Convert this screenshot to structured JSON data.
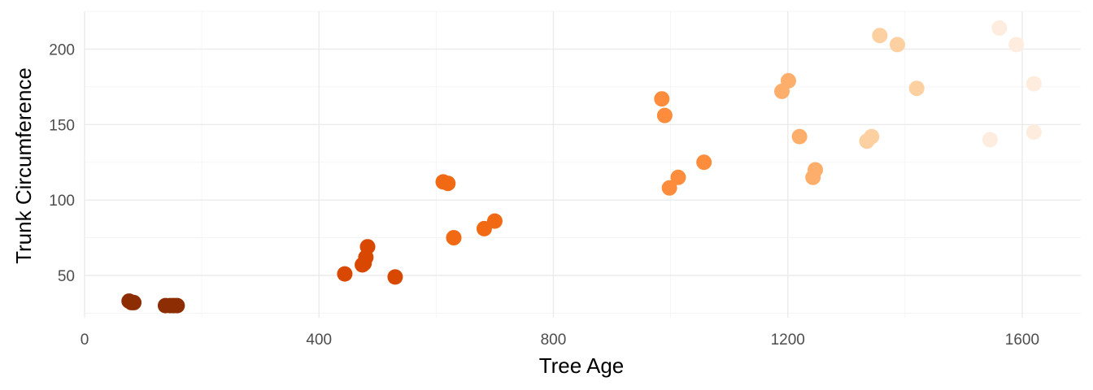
{
  "chart_data": {
    "type": "scatter",
    "title": "",
    "xlabel": "Tree Age",
    "ylabel": "Trunk Circumference",
    "xlim": [
      0,
      1700
    ],
    "ylim": [
      22,
      225
    ],
    "x_ticks": [
      0,
      400,
      800,
      1200,
      1600
    ],
    "x_tick_labels": [
      "0",
      "400",
      "800",
      "1200",
      "1600"
    ],
    "y_ticks": [
      50,
      100,
      150,
      200
    ],
    "y_tick_labels": [
      "50",
      "100",
      "150",
      "200"
    ],
    "grid": true,
    "legend": "none",
    "colors": {
      "118": "#8c2d04",
      "484": "#d94801",
      "664": "#f16913",
      "1004": "#fd8d3c",
      "1231": "#fdae6b",
      "1372": "#fdd0a2",
      "1582": "#feedde"
    },
    "points": [
      {
        "x": 76,
        "y": 33,
        "group": "118"
      },
      {
        "x": 80,
        "y": 32,
        "group": "118"
      },
      {
        "x": 84,
        "y": 32,
        "group": "118"
      },
      {
        "x": 138,
        "y": 30,
        "group": "118"
      },
      {
        "x": 146,
        "y": 30,
        "group": "118"
      },
      {
        "x": 152,
        "y": 30,
        "group": "118"
      },
      {
        "x": 158,
        "y": 30,
        "group": "118"
      },
      {
        "x": 444,
        "y": 51,
        "group": "484"
      },
      {
        "x": 474,
        "y": 57,
        "group": "484"
      },
      {
        "x": 477,
        "y": 58,
        "group": "484"
      },
      {
        "x": 480,
        "y": 62,
        "group": "484"
      },
      {
        "x": 483,
        "y": 69,
        "group": "484"
      },
      {
        "x": 530,
        "y": 49,
        "group": "484"
      },
      {
        "x": 612,
        "y": 112,
        "group": "664"
      },
      {
        "x": 620,
        "y": 111,
        "group": "664"
      },
      {
        "x": 630,
        "y": 75,
        "group": "664"
      },
      {
        "x": 682,
        "y": 81,
        "group": "664"
      },
      {
        "x": 700,
        "y": 86,
        "group": "664"
      },
      {
        "x": 985,
        "y": 167,
        "group": "1004"
      },
      {
        "x": 990,
        "y": 156,
        "group": "1004"
      },
      {
        "x": 998,
        "y": 108,
        "group": "1004"
      },
      {
        "x": 1013,
        "y": 115,
        "group": "1004"
      },
      {
        "x": 1057,
        "y": 125,
        "group": "1004"
      },
      {
        "x": 1190,
        "y": 172,
        "group": "1231"
      },
      {
        "x": 1201,
        "y": 179,
        "group": "1231"
      },
      {
        "x": 1220,
        "y": 142,
        "group": "1231"
      },
      {
        "x": 1243,
        "y": 115,
        "group": "1231"
      },
      {
        "x": 1247,
        "y": 120,
        "group": "1231"
      },
      {
        "x": 1335,
        "y": 139,
        "group": "1372"
      },
      {
        "x": 1343,
        "y": 142,
        "group": "1372"
      },
      {
        "x": 1357,
        "y": 209,
        "group": "1372"
      },
      {
        "x": 1387,
        "y": 203,
        "group": "1372"
      },
      {
        "x": 1420,
        "y": 174,
        "group": "1372"
      },
      {
        "x": 1545,
        "y": 140,
        "group": "1582"
      },
      {
        "x": 1561,
        "y": 214,
        "group": "1582"
      },
      {
        "x": 1590,
        "y": 203,
        "group": "1582"
      },
      {
        "x": 1620,
        "y": 177,
        "group": "1582"
      },
      {
        "x": 1620,
        "y": 145,
        "group": "1582"
      }
    ]
  }
}
